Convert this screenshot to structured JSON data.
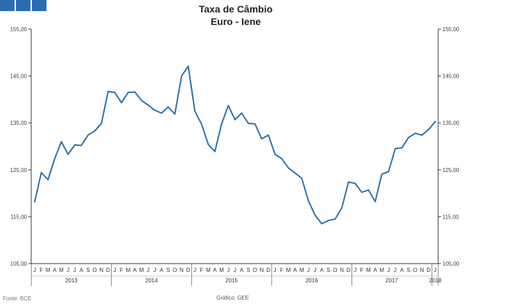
{
  "colors": {
    "series": "#2a6fa8",
    "corner": "#2b6cb0",
    "axis": "#333333",
    "grid": "#d0d0d0"
  },
  "header": {
    "title": "Taxa de Câmbio",
    "subtitle": "Euro - Iene"
  },
  "footer": {
    "source": "Fonte: BCE",
    "credit": "Gráfico: GEE"
  },
  "chart_data": {
    "type": "line",
    "title": "Taxa de Câmbio",
    "subtitle": "Euro - Iene",
    "xlabel": "",
    "ylabel": "",
    "ylim": [
      105,
      155
    ],
    "y_ticks": [
      "105,00",
      "115,00",
      "125,00",
      "135,00",
      "145,00",
      "155,00"
    ],
    "month_labels": [
      "J",
      "F",
      "M",
      "A",
      "M",
      "J",
      "J",
      "A",
      "S",
      "O",
      "N",
      "D",
      "J",
      "F",
      "M",
      "A",
      "M",
      "J",
      "J",
      "A",
      "S",
      "O",
      "N",
      "D",
      "J",
      "F",
      "M",
      "A",
      "M",
      "J",
      "J",
      "A",
      "S",
      "O",
      "N",
      "D",
      "J",
      "F",
      "M",
      "A",
      "M",
      "J",
      "J",
      "A",
      "S",
      "O",
      "N",
      "D",
      "J",
      "F",
      "M",
      "A",
      "M",
      "J",
      "J",
      "A",
      "S",
      "O",
      "N",
      "D",
      "J"
    ],
    "year_labels": [
      "2013",
      "2014",
      "2015",
      "2016",
      "2017",
      "2018"
    ],
    "grid": false,
    "legend": "none",
    "series": [
      {
        "values": [
          118.2,
          124.4,
          122.9,
          127.4,
          131.0,
          128.3,
          130.3,
          130.2,
          132.4,
          133.3,
          134.9,
          141.7,
          141.5,
          139.3,
          141.5,
          141.6,
          139.8,
          138.8,
          137.7,
          137.1,
          138.4,
          136.9,
          145.0,
          147.1,
          137.5,
          134.7,
          130.4,
          128.9,
          134.8,
          138.7,
          135.7,
          137.1,
          134.9,
          134.8,
          131.6,
          132.4,
          128.3,
          127.4,
          125.4,
          124.3,
          123.2,
          118.4,
          115.3,
          113.5,
          114.2,
          114.5,
          116.9,
          122.4,
          122.1,
          120.2,
          120.7,
          118.2,
          124.1,
          124.6,
          129.5,
          129.7,
          131.9,
          132.8,
          132.4,
          133.6,
          135.3
        ]
      }
    ]
  }
}
